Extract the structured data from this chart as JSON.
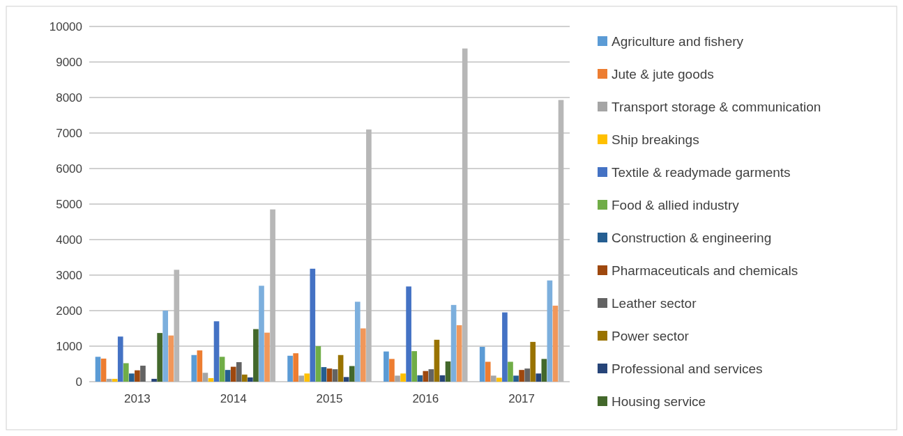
{
  "chart_data": {
    "type": "bar",
    "categories": [
      "2013",
      "2014",
      "2015",
      "2016",
      "2017"
    ],
    "ylim": [
      0,
      10000
    ],
    "yticks": [
      0,
      1000,
      2000,
      3000,
      4000,
      5000,
      6000,
      7000,
      8000,
      9000,
      10000
    ],
    "grid": "y",
    "legend": "right",
    "series": [
      {
        "name": "Agriculture and fishery",
        "color": "#5b9bd5",
        "values": [
          700,
          750,
          730,
          850,
          980
        ]
      },
      {
        "name": "Jute & jute goods",
        "color": "#ed7d31",
        "values": [
          650,
          880,
          800,
          640,
          560
        ]
      },
      {
        "name": "Transport storage & communication",
        "color": "#a5a5a5",
        "values": [
          80,
          250,
          170,
          170,
          170
        ]
      },
      {
        "name": "Ship breakings",
        "color": "#ffc000",
        "values": [
          80,
          100,
          230,
          230,
          110
        ]
      },
      {
        "name": "Textile & readymade garments",
        "color": "#4472c4",
        "values": [
          1270,
          1700,
          3180,
          2680,
          1950
        ]
      },
      {
        "name": "Food & allied industry",
        "color": "#70ad47",
        "values": [
          520,
          700,
          1000,
          860,
          560
        ]
      },
      {
        "name": "Construction & engineering",
        "color": "#255e91",
        "values": [
          230,
          330,
          410,
          180,
          170
        ]
      },
      {
        "name": "Pharmaceuticals and chemicals",
        "color": "#9e480e",
        "values": [
          320,
          420,
          370,
          300,
          330
        ]
      },
      {
        "name": "Leather sector",
        "color": "#636363",
        "values": [
          450,
          550,
          350,
          350,
          370
        ]
      },
      {
        "name": "Power sector",
        "color": "#997300",
        "values": [
          0,
          200,
          750,
          1180,
          1120
        ]
      },
      {
        "name": "Professional and services",
        "color": "#264478",
        "values": [
          80,
          120,
          130,
          180,
          230
        ]
      },
      {
        "name": "Housing service",
        "color": "#43682b",
        "values": [
          1370,
          1480,
          440,
          570,
          640
        ]
      },
      {
        "color": "#7cafdd",
        "values": [
          2000,
          2700,
          2250,
          2160,
          2850
        ]
      },
      {
        "color": "#f1975a",
        "values": [
          1300,
          1380,
          1500,
          1590,
          2140
        ]
      },
      {
        "color": "#b7b7b7",
        "values": [
          3150,
          4850,
          7100,
          9380,
          7930
        ]
      }
    ]
  }
}
